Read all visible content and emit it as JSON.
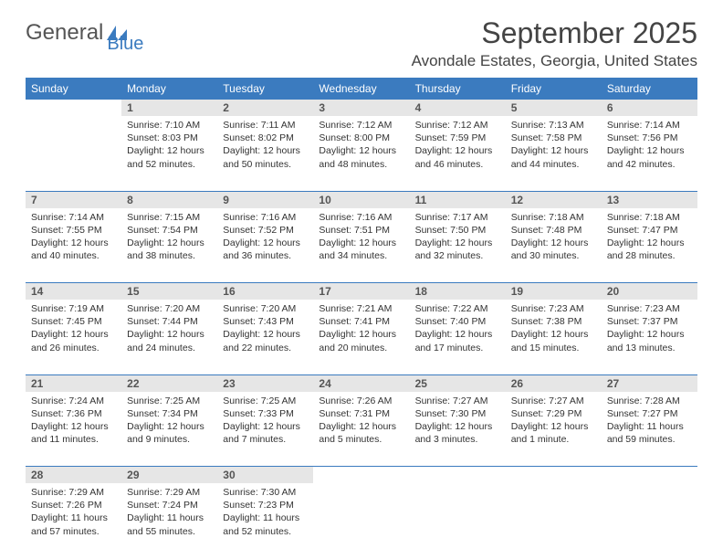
{
  "logo": {
    "general": "General",
    "blue": "Blue",
    "icon_color": "#3b7bbf"
  },
  "header": {
    "month_title": "September 2025",
    "location": "Avondale Estates, Georgia, United States"
  },
  "colors": {
    "header_bg": "#3b7bbf",
    "header_text": "#ffffff",
    "daynum_bg": "#e6e6e6",
    "daynum_text": "#555555",
    "row_border": "#3b7bbf",
    "body_text": "#333333"
  },
  "days_of_week": [
    "Sunday",
    "Monday",
    "Tuesday",
    "Wednesday",
    "Thursday",
    "Friday",
    "Saturday"
  ],
  "weeks": [
    [
      null,
      {
        "n": "1",
        "sr": "Sunrise: 7:10 AM",
        "ss": "Sunset: 8:03 PM",
        "d1": "Daylight: 12 hours",
        "d2": "and 52 minutes."
      },
      {
        "n": "2",
        "sr": "Sunrise: 7:11 AM",
        "ss": "Sunset: 8:02 PM",
        "d1": "Daylight: 12 hours",
        "d2": "and 50 minutes."
      },
      {
        "n": "3",
        "sr": "Sunrise: 7:12 AM",
        "ss": "Sunset: 8:00 PM",
        "d1": "Daylight: 12 hours",
        "d2": "and 48 minutes."
      },
      {
        "n": "4",
        "sr": "Sunrise: 7:12 AM",
        "ss": "Sunset: 7:59 PM",
        "d1": "Daylight: 12 hours",
        "d2": "and 46 minutes."
      },
      {
        "n": "5",
        "sr": "Sunrise: 7:13 AM",
        "ss": "Sunset: 7:58 PM",
        "d1": "Daylight: 12 hours",
        "d2": "and 44 minutes."
      },
      {
        "n": "6",
        "sr": "Sunrise: 7:14 AM",
        "ss": "Sunset: 7:56 PM",
        "d1": "Daylight: 12 hours",
        "d2": "and 42 minutes."
      }
    ],
    [
      {
        "n": "7",
        "sr": "Sunrise: 7:14 AM",
        "ss": "Sunset: 7:55 PM",
        "d1": "Daylight: 12 hours",
        "d2": "and 40 minutes."
      },
      {
        "n": "8",
        "sr": "Sunrise: 7:15 AM",
        "ss": "Sunset: 7:54 PM",
        "d1": "Daylight: 12 hours",
        "d2": "and 38 minutes."
      },
      {
        "n": "9",
        "sr": "Sunrise: 7:16 AM",
        "ss": "Sunset: 7:52 PM",
        "d1": "Daylight: 12 hours",
        "d2": "and 36 minutes."
      },
      {
        "n": "10",
        "sr": "Sunrise: 7:16 AM",
        "ss": "Sunset: 7:51 PM",
        "d1": "Daylight: 12 hours",
        "d2": "and 34 minutes."
      },
      {
        "n": "11",
        "sr": "Sunrise: 7:17 AM",
        "ss": "Sunset: 7:50 PM",
        "d1": "Daylight: 12 hours",
        "d2": "and 32 minutes."
      },
      {
        "n": "12",
        "sr": "Sunrise: 7:18 AM",
        "ss": "Sunset: 7:48 PM",
        "d1": "Daylight: 12 hours",
        "d2": "and 30 minutes."
      },
      {
        "n": "13",
        "sr": "Sunrise: 7:18 AM",
        "ss": "Sunset: 7:47 PM",
        "d1": "Daylight: 12 hours",
        "d2": "and 28 minutes."
      }
    ],
    [
      {
        "n": "14",
        "sr": "Sunrise: 7:19 AM",
        "ss": "Sunset: 7:45 PM",
        "d1": "Daylight: 12 hours",
        "d2": "and 26 minutes."
      },
      {
        "n": "15",
        "sr": "Sunrise: 7:20 AM",
        "ss": "Sunset: 7:44 PM",
        "d1": "Daylight: 12 hours",
        "d2": "and 24 minutes."
      },
      {
        "n": "16",
        "sr": "Sunrise: 7:20 AM",
        "ss": "Sunset: 7:43 PM",
        "d1": "Daylight: 12 hours",
        "d2": "and 22 minutes."
      },
      {
        "n": "17",
        "sr": "Sunrise: 7:21 AM",
        "ss": "Sunset: 7:41 PM",
        "d1": "Daylight: 12 hours",
        "d2": "and 20 minutes."
      },
      {
        "n": "18",
        "sr": "Sunrise: 7:22 AM",
        "ss": "Sunset: 7:40 PM",
        "d1": "Daylight: 12 hours",
        "d2": "and 17 minutes."
      },
      {
        "n": "19",
        "sr": "Sunrise: 7:23 AM",
        "ss": "Sunset: 7:38 PM",
        "d1": "Daylight: 12 hours",
        "d2": "and 15 minutes."
      },
      {
        "n": "20",
        "sr": "Sunrise: 7:23 AM",
        "ss": "Sunset: 7:37 PM",
        "d1": "Daylight: 12 hours",
        "d2": "and 13 minutes."
      }
    ],
    [
      {
        "n": "21",
        "sr": "Sunrise: 7:24 AM",
        "ss": "Sunset: 7:36 PM",
        "d1": "Daylight: 12 hours",
        "d2": "and 11 minutes."
      },
      {
        "n": "22",
        "sr": "Sunrise: 7:25 AM",
        "ss": "Sunset: 7:34 PM",
        "d1": "Daylight: 12 hours",
        "d2": "and 9 minutes."
      },
      {
        "n": "23",
        "sr": "Sunrise: 7:25 AM",
        "ss": "Sunset: 7:33 PM",
        "d1": "Daylight: 12 hours",
        "d2": "and 7 minutes."
      },
      {
        "n": "24",
        "sr": "Sunrise: 7:26 AM",
        "ss": "Sunset: 7:31 PM",
        "d1": "Daylight: 12 hours",
        "d2": "and 5 minutes."
      },
      {
        "n": "25",
        "sr": "Sunrise: 7:27 AM",
        "ss": "Sunset: 7:30 PM",
        "d1": "Daylight: 12 hours",
        "d2": "and 3 minutes."
      },
      {
        "n": "26",
        "sr": "Sunrise: 7:27 AM",
        "ss": "Sunset: 7:29 PM",
        "d1": "Daylight: 12 hours",
        "d2": "and 1 minute."
      },
      {
        "n": "27",
        "sr": "Sunrise: 7:28 AM",
        "ss": "Sunset: 7:27 PM",
        "d1": "Daylight: 11 hours",
        "d2": "and 59 minutes."
      }
    ],
    [
      {
        "n": "28",
        "sr": "Sunrise: 7:29 AM",
        "ss": "Sunset: 7:26 PM",
        "d1": "Daylight: 11 hours",
        "d2": "and 57 minutes."
      },
      {
        "n": "29",
        "sr": "Sunrise: 7:29 AM",
        "ss": "Sunset: 7:24 PM",
        "d1": "Daylight: 11 hours",
        "d2": "and 55 minutes."
      },
      {
        "n": "30",
        "sr": "Sunrise: 7:30 AM",
        "ss": "Sunset: 7:23 PM",
        "d1": "Daylight: 11 hours",
        "d2": "and 52 minutes."
      },
      null,
      null,
      null,
      null
    ]
  ]
}
